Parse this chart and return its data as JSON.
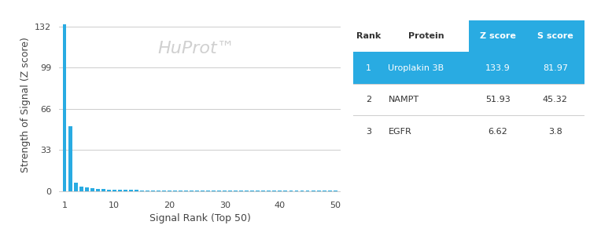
{
  "bar_color": "#29ABE2",
  "background_color": "#ffffff",
  "grid_color": "#cccccc",
  "ylabel": "Strength of Signal (Z score)",
  "xlabel": "Signal Rank (Top 50)",
  "watermark": "HuProt™",
  "watermark_color": "#d0d0d0",
  "yticks": [
    0,
    33,
    66,
    99,
    132
  ],
  "xticks": [
    1,
    10,
    20,
    30,
    40,
    50
  ],
  "xlim": [
    0,
    51
  ],
  "ylim": [
    -2,
    140
  ],
  "n_bars": 50,
  "bar_values": [
    133.9,
    51.93,
    6.62,
    3.5,
    2.8,
    2.1,
    1.7,
    1.4,
    1.2,
    1.0,
    0.9,
    0.85,
    0.8,
    0.75,
    0.7,
    0.65,
    0.6,
    0.58,
    0.55,
    0.52,
    0.5,
    0.48,
    0.46,
    0.44,
    0.42,
    0.4,
    0.38,
    0.37,
    0.36,
    0.35,
    0.34,
    0.33,
    0.32,
    0.31,
    0.3,
    0.29,
    0.28,
    0.27,
    0.26,
    0.25,
    0.24,
    0.23,
    0.22,
    0.21,
    0.2,
    0.19,
    0.18,
    0.17,
    0.16,
    0.15
  ],
  "table_header_bg": "#29ABE2",
  "table_header_color": "#ffffff",
  "table_highlight_bg": "#29ABE2",
  "table_highlight_color": "#ffffff",
  "table_text_color": "#333333",
  "table_headers": [
    "Rank",
    "Protein",
    "Z score",
    "S score"
  ],
  "table_rows": [
    [
      "1",
      "Uroplakin 3B",
      "133.9",
      "81.97"
    ],
    [
      "2",
      "NAMPT",
      "51.93",
      "45.32"
    ],
    [
      "3",
      "EGFR",
      "6.62",
      "3.8"
    ]
  ],
  "table_highlight_row": 0
}
